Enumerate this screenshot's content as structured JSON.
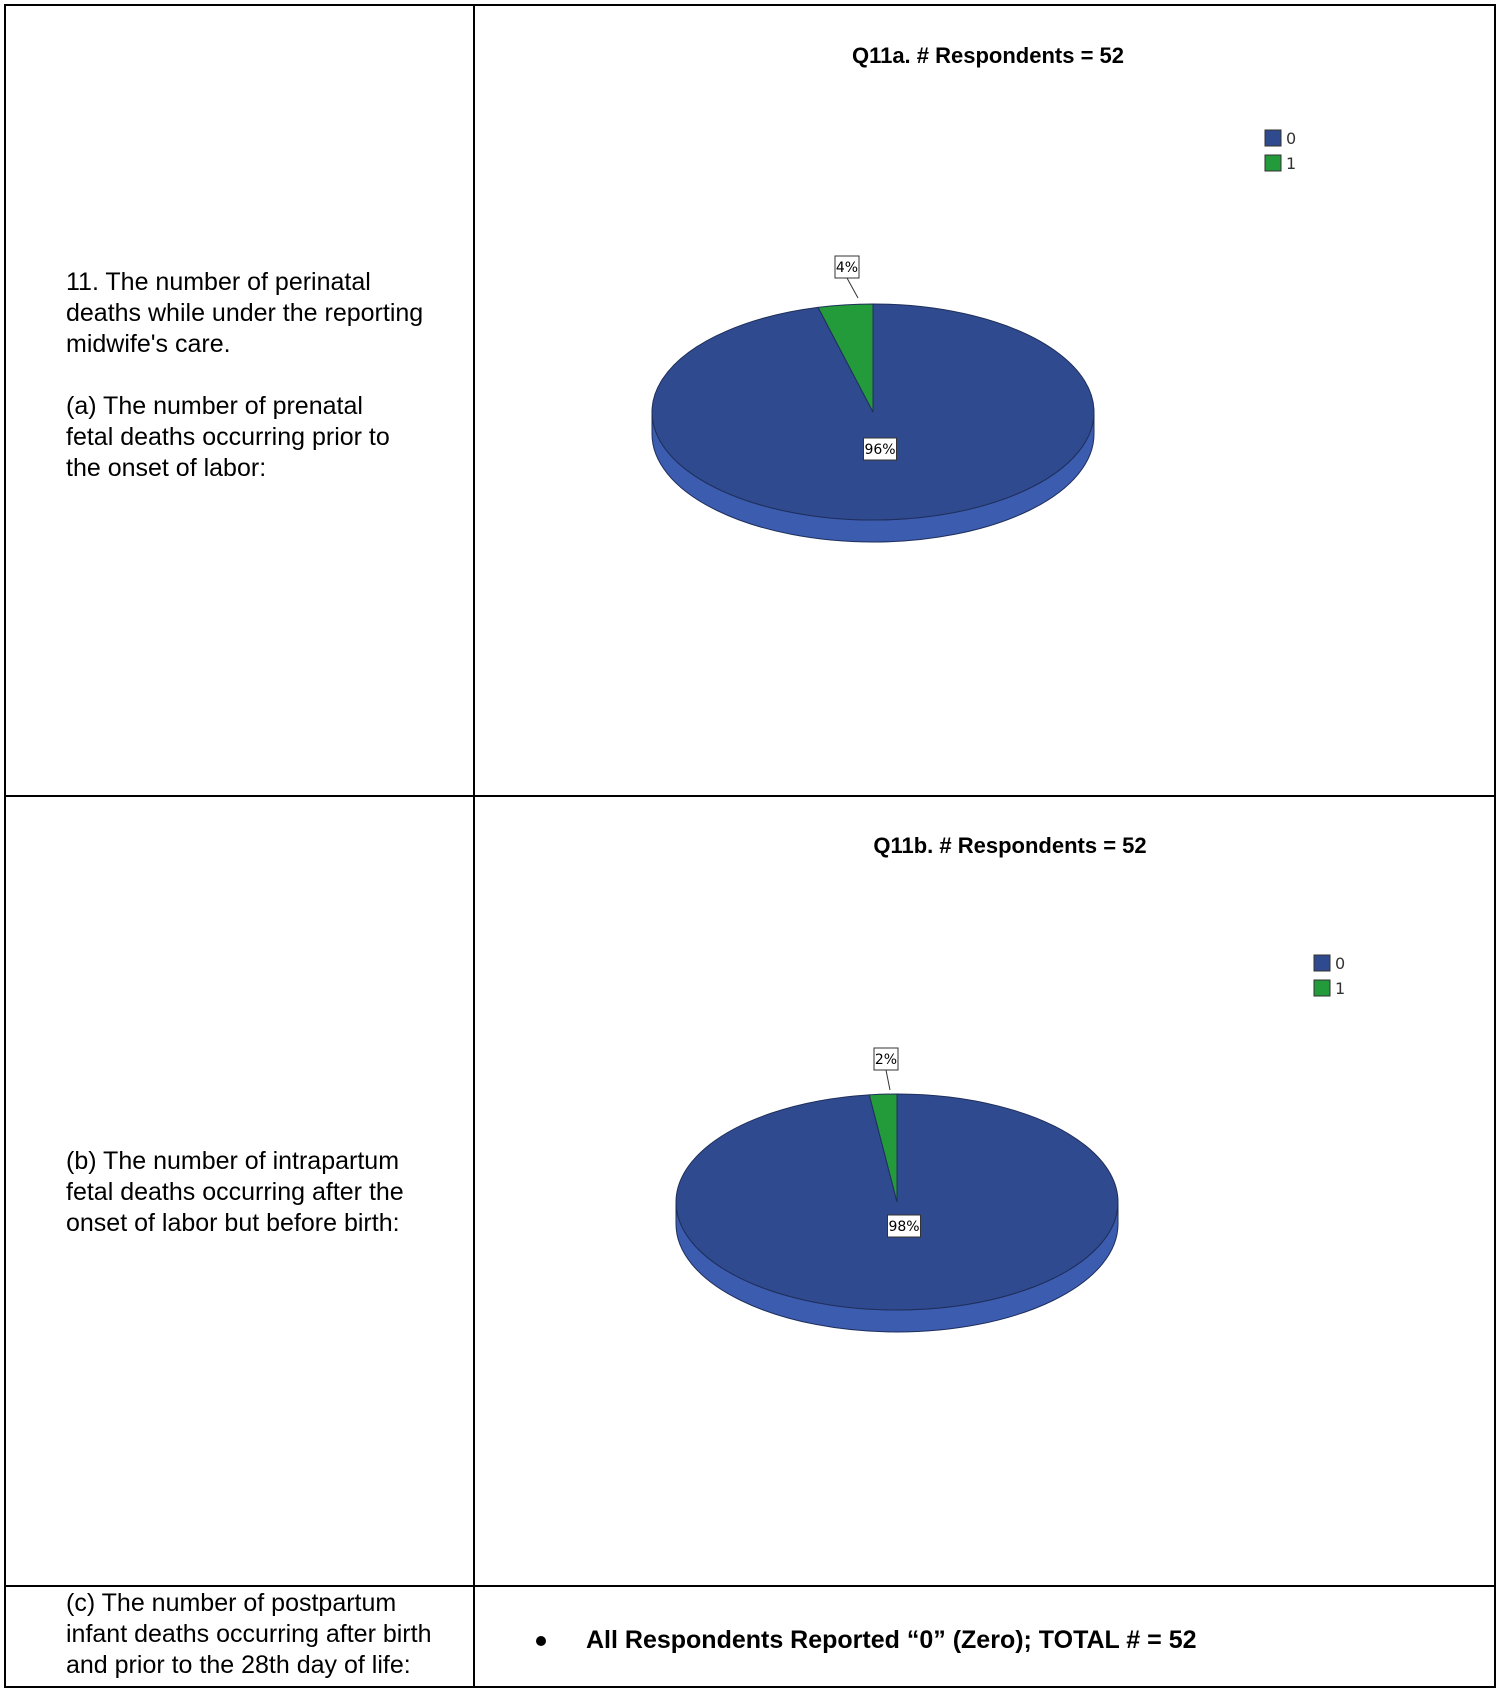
{
  "rows": [
    {
      "question_lines": [
        "11. The number of perinatal",
        "deaths while under the reporting",
        "midwife's care.",
        "",
        "(a) The number of prenatal",
        "fetal deaths occurring prior to",
        "the onset of labor:"
      ]
    },
    {
      "question_lines": [
        "(b) The number of intrapartum",
        "fetal deaths occurring after the",
        "onset of labor but before birth:"
      ]
    },
    {
      "question_lines": [
        "(c) The number of postpartum",
        "infant deaths occurring after birth",
        "and prior to the 28th day of life:"
      ],
      "answer": "All Respondents Reported “0” (Zero); TOTAL # = 52"
    }
  ],
  "chart_data": [
    {
      "type": "pie",
      "title": "Q11a. # Respondents = 52",
      "categories": [
        "0",
        "1"
      ],
      "values": [
        96,
        4
      ],
      "labels": [
        "96%",
        "4%"
      ],
      "colors": [
        "#2f4a8e",
        "#239b3a"
      ],
      "legend": "top-right"
    },
    {
      "type": "pie",
      "title": "Q11b. # Respondents = 52",
      "categories": [
        "0",
        "1"
      ],
      "values": [
        98,
        2
      ],
      "labels": [
        "98%",
        "2%"
      ],
      "colors": [
        "#2f4a8e",
        "#239b3a"
      ],
      "legend": "top-right"
    }
  ]
}
